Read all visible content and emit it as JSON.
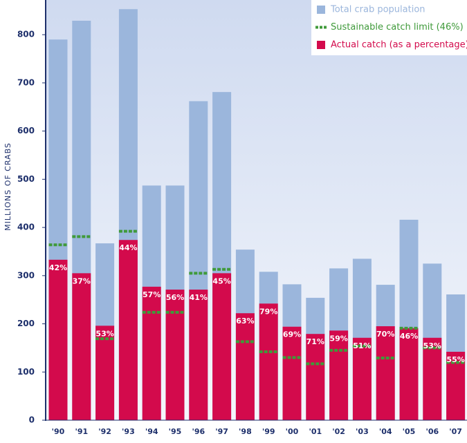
{
  "chart_data": {
    "type": "bar",
    "y_label": "MILLIONS OF CRABS",
    "categories": [
      "'90",
      "'91",
      "'92",
      "'93",
      "'94",
      "'95",
      "'96",
      "'97",
      "'98",
      "'99",
      "'00",
      "'01",
      "'02",
      "'03",
      "'04",
      "'05",
      "'06",
      "'07"
    ],
    "series": [
      {
        "name": "Total crab population",
        "color": "#9bb6dc",
        "values": [
          790,
          829,
          367,
          853,
          487,
          487,
          662,
          681,
          354,
          308,
          282,
          254,
          315,
          335,
          281,
          416,
          325,
          261
        ]
      },
      {
        "name": "Sustainable catch limit (46%)",
        "color": "#3f9a3a",
        "values": [
          364,
          381,
          169,
          392,
          224,
          224,
          305,
          313,
          163,
          142,
          130,
          117,
          145,
          154,
          129,
          191,
          150,
          120
        ]
      },
      {
        "name": "Actual catch (as a percentage)",
        "color": "#d30a4c",
        "values": [
          333,
          305,
          196,
          374,
          277,
          271,
          271,
          305,
          222,
          242,
          194,
          179,
          186,
          171,
          195,
          191,
          171,
          142
        ],
        "percent_values": [
          42,
          37,
          53,
          44,
          57,
          56,
          41,
          45,
          63,
          79,
          69,
          71,
          59,
          51,
          70,
          46,
          53,
          55
        ],
        "value_labels": [
          "42%",
          "37%",
          "53%",
          "44%",
          "57%",
          "56%",
          "41%",
          "45%",
          "63%",
          "79%",
          "69%",
          "71%",
          "59%",
          "51%",
          "70%",
          "46%",
          "53%",
          "55%"
        ]
      }
    ],
    "ylim": [
      0,
      872
    ],
    "yticks": [
      0,
      100,
      200,
      300,
      400,
      500,
      600,
      700,
      800
    ],
    "legend": "top-right"
  }
}
